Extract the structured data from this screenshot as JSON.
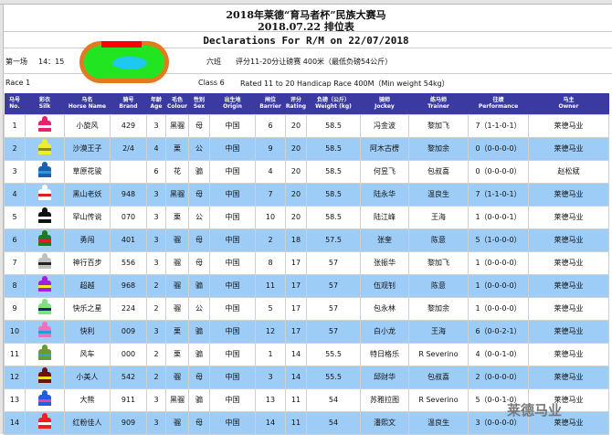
{
  "title_line1": "2018年莱德“育马者杯”民族大赛马",
  "title_line2": "2018.07.22 排位表",
  "title_en": "Declarations For R/M on 22/07/2018",
  "race": {
    "label_cn": "第一场",
    "time": "14：15",
    "class_cn": "六班",
    "desc_cn": "评分11-20分让磅赛 400米（最低负磅54公斤）",
    "label_en": "Race 1",
    "class_en": "Class 6",
    "desc_en": "Rated 11 to 20 Handicap Race 400M（Min weight 54kg）"
  },
  "headers": [
    [
      "马号",
      "No."
    ],
    [
      "彩衣",
      "Silk"
    ],
    [
      "马名",
      "Horse Name"
    ],
    [
      "骑号",
      "Brand"
    ],
    [
      "年龄",
      "Age"
    ],
    [
      "毛色",
      "Colour"
    ],
    [
      "性别",
      "Sex"
    ],
    [
      "出生地",
      "Origin"
    ],
    [
      "闸位",
      "Barrier"
    ],
    [
      "评分",
      "Rating"
    ],
    [
      "负磅（公斤）",
      "Weight (kg)"
    ],
    [
      "骑师",
      "Jockey"
    ],
    [
      "练马师",
      "Trainer"
    ],
    [
      "往绩",
      "Performance"
    ],
    [
      "马主",
      "Owner"
    ]
  ],
  "rows": [
    {
      "no": "1",
      "name": "小旋风",
      "brand": "429",
      "age": "3",
      "colour": "黑骝",
      "sex": "母",
      "origin": "中国",
      "barrier": "6",
      "rating": "20",
      "weight": "58.5",
      "jockey": "冯金波",
      "trainer": "黎加飞",
      "perf": "7（1-1-0-1）",
      "owner": "莱德马业",
      "silk": [
        "#e8206e",
        "#ffffff"
      ]
    },
    {
      "no": "2",
      "name": "沙漠王子",
      "brand": "2/4",
      "age": "4",
      "colour": "栗",
      "sex": "公",
      "origin": "中国",
      "barrier": "9",
      "rating": "20",
      "weight": "58.5",
      "jockey": "阿木古楞",
      "trainer": "黎加余",
      "perf": "0（0-0-0-0）",
      "owner": "莱德马业",
      "silk": [
        "#f0f020",
        "#8a8a20"
      ]
    },
    {
      "no": "3",
      "name": "草原花骏",
      "brand": "",
      "age": "6",
      "colour": "花",
      "sex": "骟",
      "origin": "中国",
      "barrier": "4",
      "rating": "20",
      "weight": "58.5",
      "jockey": "何昱飞",
      "trainer": "包叔喜",
      "perf": "0（0-0-0-0）",
      "owner": "赵松斌",
      "silk": [
        "#1a60b0",
        "#20a0d0"
      ]
    },
    {
      "no": "4",
      "name": "黑山老妖",
      "brand": "948",
      "age": "3",
      "colour": "黑骝",
      "sex": "母",
      "origin": "中国",
      "barrier": "7",
      "rating": "20",
      "weight": "58.5",
      "jockey": "陆永华",
      "trainer": "温良生",
      "perf": "7（1-1-0-1）",
      "owner": "莱德马业",
      "silk": [
        "#ffffff",
        "#e02020"
      ]
    },
    {
      "no": "5",
      "name": "罕山传说",
      "brand": "070",
      "age": "3",
      "colour": "栗",
      "sex": "公",
      "origin": "中国",
      "barrier": "10",
      "rating": "20",
      "weight": "58.5",
      "jockey": "陆江峰",
      "trainer": "王海",
      "perf": "1（0-0-0-1）",
      "owner": "莱德马业",
      "silk": [
        "#111111",
        "#ffffff"
      ]
    },
    {
      "no": "6",
      "name": "勇闯",
      "brand": "401",
      "age": "3",
      "colour": "骝",
      "sex": "母",
      "origin": "中国",
      "barrier": "2",
      "rating": "18",
      "weight": "57.5",
      "jockey": "张奎",
      "trainer": "陈意",
      "perf": "5（1-0-0-0）",
      "owner": "莱德马业",
      "silk": [
        "#1a7a2a",
        "#e02020"
      ]
    },
    {
      "no": "7",
      "name": "神行百步",
      "brand": "556",
      "age": "3",
      "colour": "骝",
      "sex": "母",
      "origin": "中国",
      "barrier": "8",
      "rating": "17",
      "weight": "57",
      "jockey": "张振华",
      "trainer": "黎加飞",
      "perf": "1（0-0-0-0）",
      "owner": "莱德马业",
      "silk": [
        "#c0c0c0",
        "#222222"
      ]
    },
    {
      "no": "8",
      "name": "超越",
      "brand": "968",
      "age": "2",
      "colour": "骝",
      "sex": "骟",
      "origin": "中国",
      "barrier": "11",
      "rating": "17",
      "weight": "57",
      "jockey": "伍观钊",
      "trainer": "陈意",
      "perf": "1（0-0-0-0）",
      "owner": "莱德马业",
      "silk": [
        "#a020e0",
        "#f0f020"
      ]
    },
    {
      "no": "9",
      "name": "快乐之星",
      "brand": "224",
      "age": "2",
      "colour": "骝",
      "sex": "公",
      "origin": "中国",
      "barrier": "5",
      "rating": "17",
      "weight": "57",
      "jockey": "包永林",
      "trainer": "黎加余",
      "perf": "1（0-0-0-0）",
      "owner": "莱德马业",
      "silk": [
        "#80e080",
        "#202080"
      ]
    },
    {
      "no": "10",
      "name": "快利",
      "brand": "009",
      "age": "3",
      "colour": "栗",
      "sex": "骟",
      "origin": "中国",
      "barrier": "12",
      "rating": "17",
      "weight": "57",
      "jockey": "白小龙",
      "trainer": "王海",
      "perf": "6（0-0-2-1）",
      "owner": "莱德马业",
      "silk": [
        "#f070c0",
        "#20a0d0"
      ]
    },
    {
      "no": "11",
      "name": "风车",
      "brand": "000",
      "age": "2",
      "colour": "栗",
      "sex": "骟",
      "origin": "中国",
      "barrier": "1",
      "rating": "14",
      "weight": "55.5",
      "jockey": "特日格乐",
      "trainer": "R Severino",
      "perf": "4（0-0-1-0）",
      "owner": "莱德马业",
      "silk": [
        "#6a9a30",
        "#30a0e0"
      ]
    },
    {
      "no": "12",
      "name": "小美人",
      "brand": "542",
      "age": "2",
      "colour": "骝",
      "sex": "母",
      "origin": "中国",
      "barrier": "3",
      "rating": "14",
      "weight": "55.5",
      "jockey": "邱财华",
      "trainer": "包叔喜",
      "perf": "2（0-0-0-0）",
      "owner": "莱德马业",
      "silk": [
        "#6a1010",
        "#f0e020"
      ]
    },
    {
      "no": "13",
      "name": "大熊",
      "brand": "911",
      "age": "3",
      "colour": "黑骝",
      "sex": "骟",
      "origin": "中国",
      "barrier": "13",
      "rating": "11",
      "weight": "54",
      "jockey": "苏雅拉图",
      "trainer": "R Severino",
      "perf": "5（0-0-1-0）",
      "owner": "莱德马业",
      "silk": [
        "#2060e0",
        "#f040a0"
      ]
    },
    {
      "no": "14",
      "name": "红粉佳人",
      "brand": "909",
      "age": "3",
      "colour": "骝",
      "sex": "母",
      "origin": "中国",
      "barrier": "14",
      "rating": "11",
      "weight": "54",
      "jockey": "潘熙文",
      "trainer": "温良生",
      "perf": "3（0-0-0-0）",
      "owner": "莱德马业",
      "silk": [
        "#f02020",
        "#ffffff"
      ]
    }
  ],
  "watermark": "莱德马业",
  "colors": {
    "header_bg": "#3a3aa0",
    "alt_row": "#9dcdf7"
  }
}
